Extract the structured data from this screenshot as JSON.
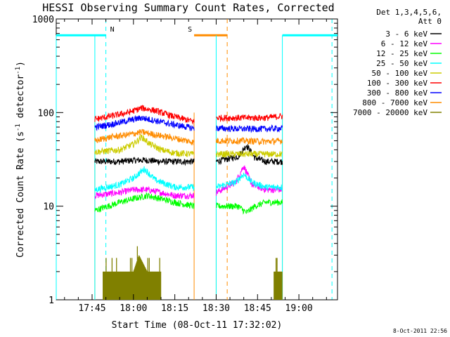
{
  "chart_data": {
    "type": "line",
    "title": "HESSI Observing Summary Count Rates, Corrected",
    "xlabel": "Start Time (08-Oct-11 17:32:02)",
    "ylabel": "Corrected Count Rate (s",
    "ylabel_sup": "-1",
    "ylabel_mid": " detector",
    "ylabel_end": ")",
    "y_scale": "log",
    "ylim": [
      1,
      1000
    ],
    "xlim": [
      "17:32",
      "19:14"
    ],
    "x_ticks": [
      "17:45",
      "18:00",
      "18:15",
      "18:30",
      "18:45",
      "19:00"
    ],
    "y_ticks": [
      "1",
      "10",
      "100",
      "1000"
    ],
    "legend_header": [
      "Det 1,3,4,5,6,",
      "Att 0"
    ],
    "legend_position": "right",
    "timestamp": "8-Oct-2011 22:56",
    "flags": [
      {
        "label": "N",
        "color": "#00ffff",
        "start": "17:32",
        "end": "17:50",
        "style": "thick",
        "marker_time": "17:50"
      },
      {
        "label": "S",
        "color": "#ff8c00",
        "start": "18:22",
        "end": "18:34",
        "style": "thick",
        "marker_time": "18:34"
      },
      {
        "label": "",
        "color": "#00ffff",
        "start": "18:54",
        "end": "19:14",
        "style": "thick",
        "marker_time": "19:12"
      }
    ],
    "data_gaps": [
      {
        "start": "18:22",
        "end": "18:30"
      },
      {
        "start": "18:54",
        "end": "19:14"
      }
    ],
    "observing_intervals": [
      {
        "start": "17:46",
        "end": "18:22"
      },
      {
        "start": "18:30",
        "end": "18:54"
      }
    ],
    "series": [
      {
        "name": "3 - 6 keV",
        "color": "#000000",
        "x": [
          "17:46",
          "17:55",
          "18:00",
          "18:05",
          "18:10",
          "18:15",
          "18:22",
          "18:30",
          "18:38",
          "18:41",
          "18:44",
          "18:48",
          "18:54"
        ],
        "y": [
          30,
          30,
          31,
          31,
          30,
          30,
          30,
          30,
          34,
          45,
          33,
          30,
          30
        ]
      },
      {
        "name": "6 - 12 keV",
        "color": "#ff00ff",
        "x": [
          "17:46",
          "17:55",
          "18:00",
          "18:05",
          "18:10",
          "18:15",
          "18:22",
          "18:30",
          "18:37",
          "18:40",
          "18:43",
          "18:48",
          "18:54"
        ],
        "y": [
          13,
          14,
          15,
          15,
          14,
          13,
          13,
          14,
          18,
          27,
          17,
          15,
          15
        ]
      },
      {
        "name": "12 - 25 keV",
        "color": "#00ff00",
        "x": [
          "17:46",
          "17:55",
          "18:00",
          "18:05",
          "18:10",
          "18:15",
          "18:22",
          "18:30",
          "18:38",
          "18:41",
          "18:44",
          "18:48",
          "18:54"
        ],
        "y": [
          9,
          11,
          12,
          13,
          12,
          11,
          10,
          10,
          10,
          8.5,
          10,
          11,
          11
        ]
      },
      {
        "name": "25 - 50 keV",
        "color": "#00ffff",
        "x": [
          "17:46",
          "17:55",
          "18:00",
          "18:04",
          "18:08",
          "18:15",
          "18:22",
          "18:30",
          "18:37",
          "18:40",
          "18:43",
          "18:48",
          "18:54"
        ],
        "y": [
          15,
          17,
          20,
          25,
          19,
          16,
          16,
          16,
          18,
          22,
          18,
          16,
          16
        ]
      },
      {
        "name": "50 - 100 keV",
        "color": "#cccc00",
        "x": [
          "17:46",
          "17:55",
          "18:00",
          "18:03",
          "18:06",
          "18:10",
          "18:15",
          "18:22",
          "18:30",
          "18:40",
          "18:48",
          "18:54"
        ],
        "y": [
          38,
          40,
          46,
          55,
          46,
          40,
          37,
          36,
          36,
          36,
          36,
          36
        ]
      },
      {
        "name": "100 - 300 keV",
        "color": "#ff0000",
        "x": [
          "17:46",
          "17:52",
          "17:58",
          "18:03",
          "18:08",
          "18:14",
          "18:22",
          "18:30",
          "18:40",
          "18:48",
          "18:54"
        ],
        "y": [
          85,
          92,
          100,
          112,
          105,
          92,
          80,
          88,
          88,
          88,
          92
        ]
      },
      {
        "name": "300 - 800 keV",
        "color": "#0000ff",
        "x": [
          "17:46",
          "17:52",
          "17:58",
          "18:03",
          "18:08",
          "18:14",
          "18:22",
          "18:30",
          "18:40",
          "18:48",
          "18:54"
        ],
        "y": [
          70,
          75,
          82,
          88,
          82,
          75,
          68,
          68,
          67,
          67,
          68
        ]
      },
      {
        "name": "800 - 7000 keV",
        "color": "#ff8c00",
        "x": [
          "17:46",
          "17:52",
          "17:58",
          "18:03",
          "18:08",
          "18:14",
          "18:22",
          "18:30",
          "18:40",
          "18:48",
          "18:54"
        ],
        "y": [
          50,
          55,
          58,
          62,
          58,
          54,
          48,
          50,
          50,
          49,
          50
        ]
      },
      {
        "name": "7000 - 20000 keV",
        "color": "#808000",
        "x": [
          "17:50",
          "17:55",
          "18:00",
          "18:02",
          "18:05",
          "18:10",
          "18:14",
          "18:51",
          "18:53"
        ],
        "y": [
          2,
          2,
          2,
          3,
          2,
          2,
          2,
          2,
          2
        ]
      }
    ]
  }
}
